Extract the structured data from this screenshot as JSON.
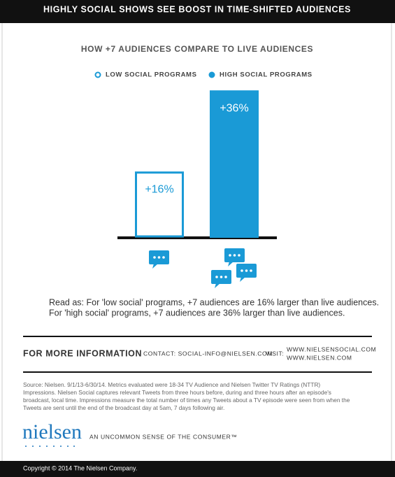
{
  "banner": "HIGHLY SOCIAL SHOWS SEE BOOST IN TIME-SHIFTED AUDIENCES",
  "chart_data": {
    "type": "bar",
    "title": "HOW +7 AUDIENCES COMPARE TO LIVE AUDIENCES",
    "categories": [
      null
    ],
    "series": [
      {
        "name": "LOW SOCIAL PROGRAMS",
        "color": "#1a9ad6",
        "filled": false,
        "values": [
          16
        ],
        "value_labels": [
          "+16%"
        ]
      },
      {
        "name": "HIGH SOCIAL PROGRAMS",
        "color": "#1a9ad6",
        "filled": true,
        "values": [
          36
        ],
        "value_labels": [
          "+36%"
        ]
      }
    ]
  },
  "read_as": [
    "Read as: For 'low social' programs, +7 audiences are 16% larger than live audiences.",
    "For 'high social' programs, +7 audiences are 36% larger than live audiences."
  ],
  "more_info": {
    "heading": "FOR MORE INFORMATION",
    "contact": "CONTACT: SOCIAL-INFO@NIELSEN.COM",
    "visit": "VISIT:",
    "urls": [
      "WWW.NIELSENSOCIAL.COM",
      "WWW.NIELSEN.COM"
    ]
  },
  "source": [
    "Source: Nielsen. 9/1/13-6/30/14. Metrics evaluated were 18-34 TV Audience and Nielsen Twitter TV Ratings (NTTR)",
    "Impressions. Nielsen Social captures relevant Tweets from three hours before, during and three hours after an episode's",
    "broadcast, local time. Impressions measure the total number of times any Tweets about a TV episode were seen from when the",
    "Tweets are sent until the end of the broadcast day at 5am, 7 days following air."
  ],
  "logo": "nielsen",
  "tagline": "AN UNCOMMON SENSE OF THE CONSUMER™",
  "copyright": "Copyright © 2014 The Nielsen Company."
}
